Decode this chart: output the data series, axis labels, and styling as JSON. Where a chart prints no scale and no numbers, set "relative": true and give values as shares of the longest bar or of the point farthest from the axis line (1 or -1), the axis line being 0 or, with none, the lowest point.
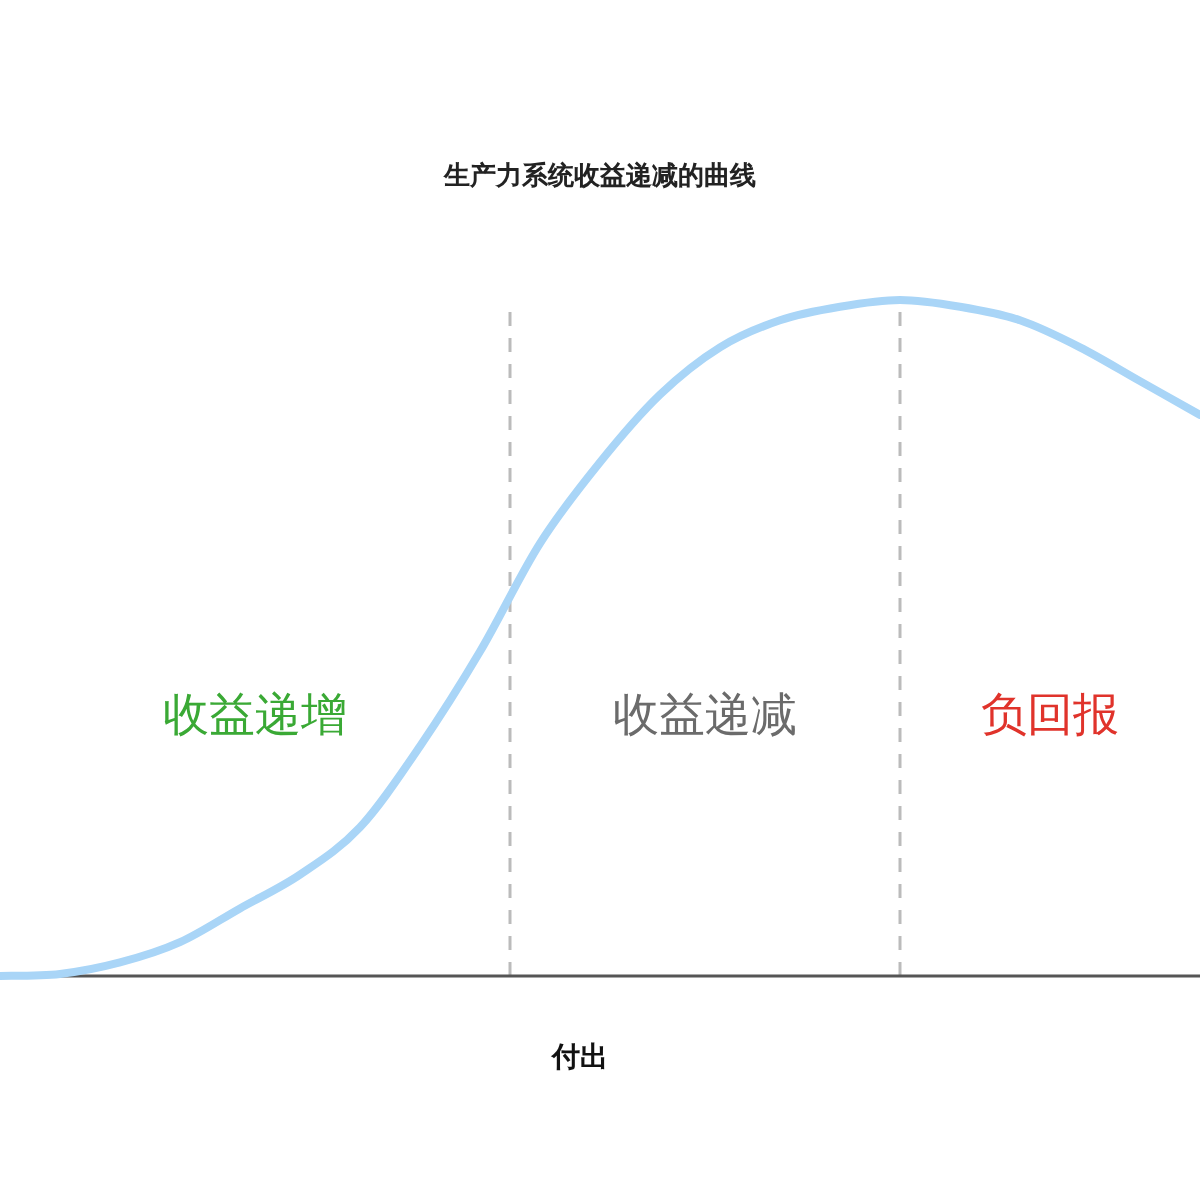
{
  "chart_data": {
    "type": "line",
    "title": "生产力系统收益递减的曲线",
    "xlabel": "付出",
    "relative": true,
    "categories": [
      null,
      null,
      null,
      null,
      null,
      null,
      null,
      null,
      null,
      null,
      null,
      null,
      null,
      null,
      null,
      null,
      null,
      null,
      null,
      null,
      null
    ],
    "series": [
      {
        "color": "#a9d5f7",
        "values": [
          0,
          0.003,
          0.02,
          0.05,
          0.1,
          0.15,
          0.22,
          0.34,
          0.48,
          0.64,
          0.76,
          0.86,
          0.93,
          0.97,
          0.99,
          1,
          0.99,
          0.97,
          0.93,
          0.88,
          0.83
        ]
      }
    ],
    "annotations": [
      "收益递增",
      "收益递减",
      "负回报"
    ],
    "grid": false,
    "marker": "none",
    "line_style": "solid"
  }
}
